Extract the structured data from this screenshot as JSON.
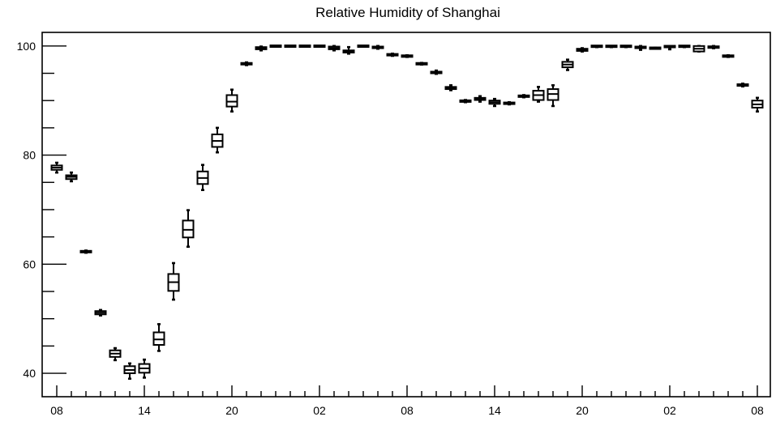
{
  "chart_data": {
    "type": "box",
    "title": "Relative Humidity of Shanghai",
    "xlabel": "",
    "ylabel": "",
    "ylim": [
      35.7,
      102.5
    ],
    "grid": false,
    "legend": "none",
    "colors": {
      "stroke": "#000000",
      "background": "#ffffff"
    },
    "y_ticks": [
      40,
      60,
      80,
      100
    ],
    "x_tick_labels": [
      "08",
      "14",
      "20",
      "02",
      "08",
      "14",
      "20",
      "02",
      "08"
    ],
    "series": [
      {
        "boxes": [
          {
            "x": 0,
            "whisker_low": 76.8,
            "q1": 77.3,
            "median": 77.7,
            "q3": 78.1,
            "whisker_high": 78.6
          },
          {
            "x": 1,
            "whisker_low": 75.2,
            "q1": 75.6,
            "median": 76.0,
            "q3": 76.3,
            "whisker_high": 76.8
          },
          {
            "x": 2,
            "whisker_low": 62.1,
            "q1": 62.2,
            "median": 62.3,
            "q3": 62.4,
            "whisker_high": 62.5
          },
          {
            "x": 3,
            "whisker_low": 50.6,
            "q1": 50.8,
            "median": 51.1,
            "q3": 51.4,
            "whisker_high": 51.6
          },
          {
            "x": 4,
            "whisker_low": 42.4,
            "q1": 43.0,
            "median": 43.6,
            "q3": 44.2,
            "whisker_high": 44.6
          },
          {
            "x": 5,
            "whisker_low": 39.0,
            "q1": 40.0,
            "median": 40.6,
            "q3": 41.3,
            "whisker_high": 41.8
          },
          {
            "x": 6,
            "whisker_low": 39.2,
            "q1": 40.1,
            "median": 40.9,
            "q3": 41.7,
            "whisker_high": 42.5
          },
          {
            "x": 7,
            "whisker_low": 44.1,
            "q1": 45.2,
            "median": 46.2,
            "q3": 47.5,
            "whisker_high": 49.0
          },
          {
            "x": 8,
            "whisker_low": 53.5,
            "q1": 55.1,
            "median": 56.7,
            "q3": 58.2,
            "whisker_high": 60.2
          },
          {
            "x": 9,
            "whisker_low": 63.2,
            "q1": 64.9,
            "median": 66.3,
            "q3": 68.0,
            "whisker_high": 69.9
          },
          {
            "x": 10,
            "whisker_low": 73.6,
            "q1": 74.7,
            "median": 75.8,
            "q3": 77.0,
            "whisker_high": 78.2
          },
          {
            "x": 11,
            "whisker_low": 80.5,
            "q1": 81.5,
            "median": 82.6,
            "q3": 83.8,
            "whisker_high": 85.0
          },
          {
            "x": 12,
            "whisker_low": 88.0,
            "q1": 88.9,
            "median": 89.8,
            "q3": 91.0,
            "whisker_high": 92.0
          },
          {
            "x": 13,
            "whisker_low": 96.5,
            "q1": 96.6,
            "median": 96.8,
            "q3": 96.9,
            "whisker_high": 97.0
          },
          {
            "x": 14,
            "whisker_low": 99.2,
            "q1": 99.4,
            "median": 99.6,
            "q3": 99.8,
            "whisker_high": 99.9
          },
          {
            "x": 15,
            "whisker_low": 99.9,
            "q1": 99.95,
            "median": 100.0,
            "q3": 100.0,
            "whisker_high": 100.0
          },
          {
            "x": 16,
            "whisker_low": 99.9,
            "q1": 99.95,
            "median": 100.0,
            "q3": 100.0,
            "whisker_high": 100.0
          },
          {
            "x": 17,
            "whisker_low": 99.9,
            "q1": 99.95,
            "median": 100.0,
            "q3": 100.0,
            "whisker_high": 100.0
          },
          {
            "x": 18,
            "whisker_low": 99.9,
            "q1": 99.95,
            "median": 100.0,
            "q3": 100.0,
            "whisker_high": 100.0
          },
          {
            "x": 19,
            "whisker_low": 99.2,
            "q1": 99.4,
            "median": 99.6,
            "q3": 99.9,
            "whisker_high": 100.0
          },
          {
            "x": 20,
            "whisker_low": 98.6,
            "q1": 98.8,
            "median": 99.0,
            "q3": 99.2,
            "whisker_high": 99.8
          },
          {
            "x": 21,
            "whisker_low": 99.9,
            "q1": 99.95,
            "median": 100.0,
            "q3": 100.0,
            "whisker_high": 100.0
          },
          {
            "x": 22,
            "whisker_low": 99.5,
            "q1": 99.6,
            "median": 99.8,
            "q3": 99.9,
            "whisker_high": 100.0
          },
          {
            "x": 23,
            "whisker_low": 98.2,
            "q1": 98.3,
            "median": 98.4,
            "q3": 98.5,
            "whisker_high": 98.6
          },
          {
            "x": 24,
            "whisker_low": 98.0,
            "q1": 98.1,
            "median": 98.15,
            "q3": 98.2,
            "whisker_high": 98.3
          },
          {
            "x": 25,
            "whisker_low": 96.6,
            "q1": 96.7,
            "median": 96.75,
            "q3": 96.8,
            "whisker_high": 96.9
          },
          {
            "x": 26,
            "whisker_low": 94.9,
            "q1": 95.0,
            "median": 95.2,
            "q3": 95.3,
            "whisker_high": 95.5
          },
          {
            "x": 27,
            "whisker_low": 91.9,
            "q1": 92.1,
            "median": 92.3,
            "q3": 92.5,
            "whisker_high": 92.8
          },
          {
            "x": 28,
            "whisker_low": 89.7,
            "q1": 89.8,
            "median": 89.9,
            "q3": 90.0,
            "whisker_high": 90.1
          },
          {
            "x": 29,
            "whisker_low": 89.8,
            "q1": 90.1,
            "median": 90.3,
            "q3": 90.5,
            "whisker_high": 90.8
          },
          {
            "x": 30,
            "whisker_low": 89.0,
            "q1": 89.4,
            "median": 89.7,
            "q3": 90.0,
            "whisker_high": 90.3
          },
          {
            "x": 31,
            "whisker_low": 89.3,
            "q1": 89.4,
            "median": 89.5,
            "q3": 89.6,
            "whisker_high": 89.7
          },
          {
            "x": 32,
            "whisker_low": 90.6,
            "q1": 90.7,
            "median": 90.8,
            "q3": 90.9,
            "whisker_high": 91.0
          },
          {
            "x": 33,
            "whisker_low": 89.8,
            "q1": 90.1,
            "median": 91.0,
            "q3": 91.8,
            "whisker_high": 92.5
          },
          {
            "x": 34,
            "whisker_low": 89.0,
            "q1": 90.1,
            "median": 91.2,
            "q3": 92.1,
            "whisker_high": 92.8
          },
          {
            "x": 35,
            "whisker_low": 95.6,
            "q1": 96.1,
            "median": 96.6,
            "q3": 97.1,
            "whisker_high": 97.5
          },
          {
            "x": 36,
            "whisker_low": 99.0,
            "q1": 99.1,
            "median": 99.3,
            "q3": 99.5,
            "whisker_high": 99.6
          },
          {
            "x": 37,
            "whisker_low": 99.8,
            "q1": 99.9,
            "median": 100.0,
            "q3": 100.0,
            "whisker_high": 100.0
          },
          {
            "x": 38,
            "whisker_low": 99.8,
            "q1": 99.9,
            "median": 100.0,
            "q3": 100.0,
            "whisker_high": 100.0
          },
          {
            "x": 39,
            "whisker_low": 99.8,
            "q1": 99.9,
            "median": 100.0,
            "q3": 100.0,
            "whisker_high": 100.0
          },
          {
            "x": 40,
            "whisker_low": 99.3,
            "q1": 99.6,
            "median": 99.8,
            "q3": 99.9,
            "whisker_high": 100.0
          },
          {
            "x": 41,
            "whisker_low": 99.5,
            "q1": 99.55,
            "median": 99.6,
            "q3": 99.65,
            "whisker_high": 99.7
          },
          {
            "x": 42,
            "whisker_low": 99.4,
            "q1": 99.8,
            "median": 99.9,
            "q3": 100.0,
            "whisker_high": 100.0
          },
          {
            "x": 43,
            "whisker_low": 99.8,
            "q1": 99.9,
            "median": 100.0,
            "q3": 100.0,
            "whisker_high": 100.0
          },
          {
            "x": 44,
            "whisker_low": 99.0,
            "q1": 99.0,
            "median": 99.5,
            "q3": 100.0,
            "whisker_high": 100.0
          },
          {
            "x": 45,
            "whisker_low": 99.6,
            "q1": 99.7,
            "median": 99.8,
            "q3": 99.9,
            "whisker_high": 100.0
          },
          {
            "x": 46,
            "whisker_low": 98.0,
            "q1": 98.1,
            "median": 98.15,
            "q3": 98.2,
            "whisker_high": 98.3
          },
          {
            "x": 47,
            "whisker_low": 92.6,
            "q1": 92.7,
            "median": 92.8,
            "q3": 93.0,
            "whisker_high": 93.1
          },
          {
            "x": 48,
            "whisker_low": 88.0,
            "q1": 88.7,
            "median": 89.3,
            "q3": 90.0,
            "whisker_high": 90.5
          }
        ]
      }
    ]
  }
}
